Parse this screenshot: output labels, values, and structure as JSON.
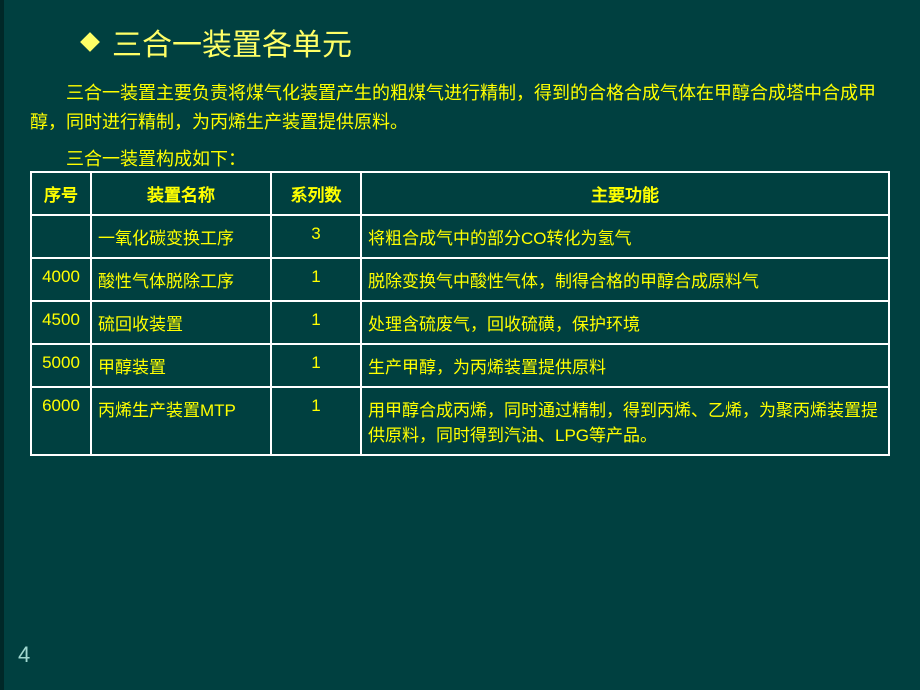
{
  "title": "三合一装置各单元",
  "intro": "三合一装置主要负责将煤气化装置产生的粗煤气进行精制，得到的合格合成气体在甲醇合成塔中合成甲醇，同时进行精制，为丙烯生产装置提供原料。",
  "subintro": "三合一装置构成如下：",
  "pageNumber": "4",
  "table": {
    "headers": {
      "seq": "序号",
      "name": "装置名称",
      "series": "系列数",
      "func": "主要功能"
    },
    "rows": [
      {
        "seq": "",
        "name": "一氧化碳变换工序",
        "series": "3",
        "func": "将粗合成气中的部分CO转化为氢气"
      },
      {
        "seq": "4000",
        "name": "酸性气体脱除工序",
        "series": "1",
        "func": "脱除变换气中酸性气体，制得合格的甲醇合成原料气"
      },
      {
        "seq": "4500",
        "name": "硫回收装置",
        "series": "1",
        "func": "处理含硫废气，回收硫磺，保护环境"
      },
      {
        "seq": "5000",
        "name": "甲醇装置",
        "series": "1",
        "func": "生产甲醇，为丙烯装置提供原料"
      },
      {
        "seq": "6000",
        "name": "丙烯生产装置MTP",
        "series": "1",
        "func": "用甲醇合成丙烯，同时通过精制，得到丙烯、乙烯，为聚丙烯装置提供原料，同时得到汽油、LPG等产品。"
      }
    ]
  },
  "colors": {
    "background": "#004040",
    "text": "#ffff00",
    "title": "#ffff66",
    "border": "#ffffff",
    "pageNum": "#a0d8d0"
  }
}
